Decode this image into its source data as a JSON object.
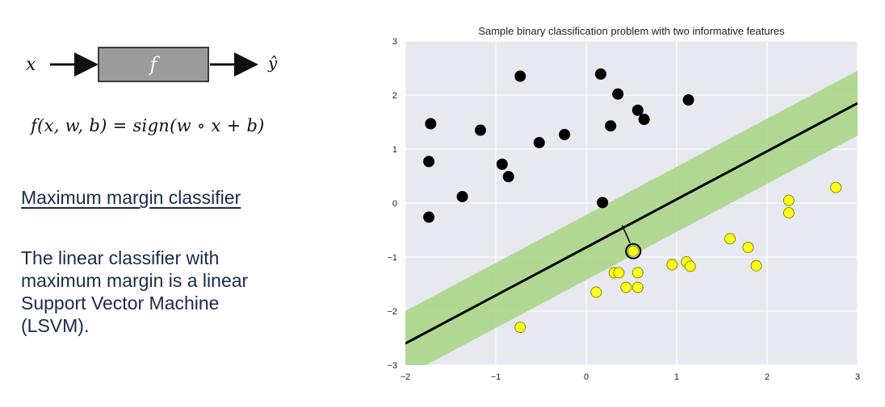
{
  "left": {
    "diagram": {
      "input": "x",
      "box": "f",
      "output": "ŷ"
    },
    "formula": "f(x, w, b) = sign(w ∘ x + b)",
    "heading": "Maximum margin classifier",
    "description_lines": [
      "The linear classifier with",
      "maximum margin is a linear",
      "Support Vector Machine",
      "(LSVM)."
    ]
  },
  "chart_data": {
    "type": "scatter",
    "title": "Sample binary classification problem with two informative features",
    "xlabel": "",
    "ylabel": "",
    "xlim": [
      -2,
      3
    ],
    "ylim": [
      -3,
      3
    ],
    "xticks": [
      -2,
      -1,
      0,
      1,
      2,
      3
    ],
    "yticks": [
      -3,
      -2,
      -1,
      0,
      1,
      2,
      3
    ],
    "xtick_labels": [
      "−2",
      "−1",
      "0",
      "1",
      "2",
      "3"
    ],
    "ytick_labels": [
      "−3",
      "−2",
      "−1",
      "0",
      "1",
      "2",
      "3"
    ],
    "grid": true,
    "background": "#e8e8f0",
    "series": [
      {
        "color": "#000000",
        "points": [
          [
            -0.73,
            2.35
          ],
          [
            0.16,
            2.39
          ],
          [
            0.35,
            2.02
          ],
          [
            1.13,
            1.91
          ],
          [
            0.57,
            1.72
          ],
          [
            0.64,
            1.55
          ],
          [
            0.27,
            1.43
          ],
          [
            -1.72,
            1.47
          ],
          [
            -1.17,
            1.35
          ],
          [
            -0.24,
            1.27
          ],
          [
            -0.52,
            1.12
          ],
          [
            -1.74,
            0.77
          ],
          [
            -0.93,
            0.72
          ],
          [
            -0.86,
            0.49
          ],
          [
            -1.37,
            0.12
          ],
          [
            0.18,
            0.01
          ],
          [
            -1.74,
            -0.26
          ]
        ]
      },
      {
        "color": "#ffff1a",
        "points": [
          [
            2.76,
            0.29
          ],
          [
            2.24,
            0.05
          ],
          [
            2.24,
            -0.18
          ],
          [
            1.59,
            -0.66
          ],
          [
            1.79,
            -0.82
          ],
          [
            1.88,
            -1.16
          ],
          [
            0.52,
            -0.89
          ],
          [
            0.95,
            -1.14
          ],
          [
            1.11,
            -1.09
          ],
          [
            1.15,
            -1.17
          ],
          [
            0.31,
            -1.29
          ],
          [
            0.36,
            -1.29
          ],
          [
            0.57,
            -1.29
          ],
          [
            0.44,
            -1.56
          ],
          [
            0.57,
            -1.56
          ],
          [
            0.11,
            -1.65
          ],
          [
            -0.73,
            -2.3
          ]
        ]
      }
    ],
    "decision_line": {
      "from": [
        -2.0,
        -2.6
      ],
      "to": [
        3.0,
        1.85
      ],
      "color": "#000000"
    },
    "margin_band": {
      "half_width": 0.45,
      "color": "#a3d37a"
    },
    "annotation_circle_point": [
      0.52,
      -0.89
    ]
  }
}
